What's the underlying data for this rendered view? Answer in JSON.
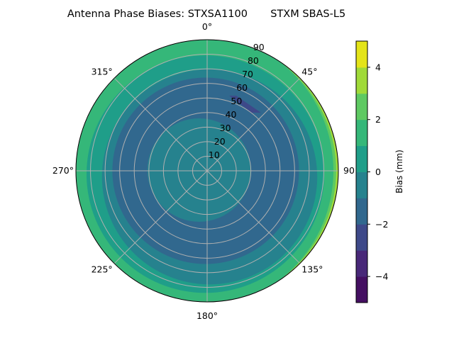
{
  "chart_data": {
    "type": "polar-contour",
    "title": "Antenna Phase Biases: STXSA1100       STXM SBAS-L5",
    "angular_axis": {
      "direction": "clockwise",
      "zero": "north",
      "tick_labels": [
        "0°",
        "45°",
        "90",
        "135°",
        "180°",
        "225°",
        "270°",
        "315°"
      ],
      "tick_values": [
        0,
        45,
        90,
        135,
        180,
        225,
        270,
        315
      ]
    },
    "radial_axis": {
      "range": [
        0,
        90
      ],
      "tick_values": [
        10,
        20,
        30,
        40,
        50,
        60,
        70,
        80,
        90
      ],
      "tick_labels": [
        "10",
        "20",
        "30",
        "40",
        "50",
        "60",
        "70",
        "80",
        "90"
      ],
      "label_angle": 22.5
    },
    "grid": true,
    "colorbar": {
      "label": "Bias (mm)",
      "range": [
        -5,
        5
      ],
      "levels": [
        -5,
        -4,
        -3,
        -2,
        -1,
        0,
        1,
        2,
        3,
        4,
        5
      ],
      "colors": [
        "#440f61",
        "#482878",
        "#3e4989",
        "#31688e",
        "#26828e",
        "#1f9e89",
        "#35b779",
        "#5ec962",
        "#a0da39",
        "#e4e419"
      ],
      "tick_values": [
        -4,
        -2,
        0,
        2,
        4
      ],
      "tick_labels": [
        "−4",
        "−2",
        "0",
        "2",
        "4"
      ]
    },
    "regions": [
      {
        "band": [
          3,
          4
        ],
        "shape": "full"
      },
      {
        "band": [
          2,
          3
        ],
        "shape": "circle",
        "center_east": -3,
        "center_north": 0,
        "radius": 91.5
      },
      {
        "band": [
          1,
          2
        ],
        "shape": "circle",
        "center_east": -8,
        "center_north": 0,
        "radius": 94.6
      },
      {
        "band": [
          0,
          1
        ],
        "shape": "circle",
        "center_east": -1.2,
        "center_north": -2.3,
        "radius": 81.5
      },
      {
        "band": [
          -1,
          0
        ],
        "shape": "circle",
        "center_east": 1.7,
        "center_north": -4.2,
        "radius": 73.8
      },
      {
        "band": [
          -2,
          -1
        ],
        "shape": "circle",
        "center_east": -1,
        "center_north": 0,
        "radius": 64
      },
      {
        "band": [
          -1,
          0
        ],
        "shape": "circle",
        "center_east": -5.5,
        "center_north": 0.5,
        "radius": 35.5
      },
      {
        "band": [
          -3,
          -2
        ],
        "shape": "polygon",
        "points_az_zen": [
          [
            16.3,
            53.7
          ],
          [
            21.1,
            55.3
          ],
          [
            42.8,
            54.4
          ],
          [
            37.5,
            50.3
          ]
        ]
      }
    ]
  }
}
